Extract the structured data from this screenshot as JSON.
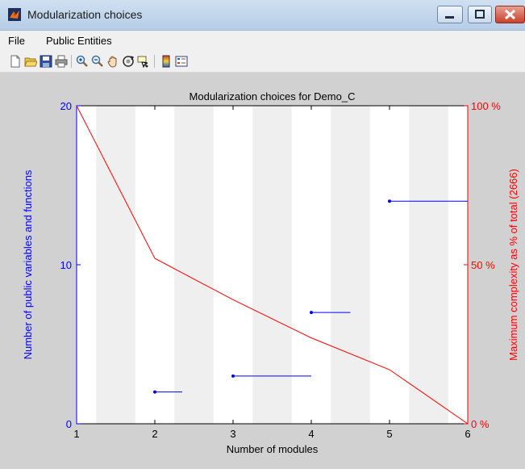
{
  "window": {
    "title": "Modularization choices"
  },
  "menu": {
    "file": "File",
    "public_entities": "Public Entities"
  },
  "toolbar_icons": [
    "new-figure-icon",
    "open-file-icon",
    "save-icon",
    "print-icon",
    "zoom-in-icon",
    "zoom-out-icon",
    "pan-icon",
    "rotate-3d-icon",
    "data-cursor-icon",
    "colorbar-icon",
    "legend-icon"
  ],
  "chart_data": {
    "type": "line",
    "title": "Modularization choices for Demo_C",
    "xlabel": "Number of modules",
    "ylabel_left": "Number of public variables and functions",
    "ylabel_right": "Maximum complexity as % of total (2666)",
    "xlim": [
      1,
      6
    ],
    "ylim_left": [
      0,
      20
    ],
    "ylim_right": [
      0,
      100
    ],
    "x_ticks": [
      "1",
      "2",
      "3",
      "4",
      "5",
      "6"
    ],
    "y_left_ticks": [
      "0",
      "10",
      "20"
    ],
    "y_right_ticks": [
      "0 %",
      "50 %",
      "100 %"
    ],
    "colors": {
      "left": "#0000ff",
      "right": "#ff0000"
    },
    "series": [
      {
        "axis": "left",
        "style": "horizontal-segments",
        "segments": [
          {
            "x": [
              2,
              2.35
            ],
            "y": 2
          },
          {
            "x": [
              3,
              4
            ],
            "y": 3
          },
          {
            "x": [
              4,
              4.5
            ],
            "y": 7
          },
          {
            "x": [
              5,
              6
            ],
            "y": 14
          }
        ]
      },
      {
        "axis": "right",
        "style": "line",
        "x": [
          1,
          2,
          3,
          4,
          5,
          6
        ],
        "y": [
          100,
          52,
          39,
          27,
          17,
          0
        ]
      }
    ]
  }
}
